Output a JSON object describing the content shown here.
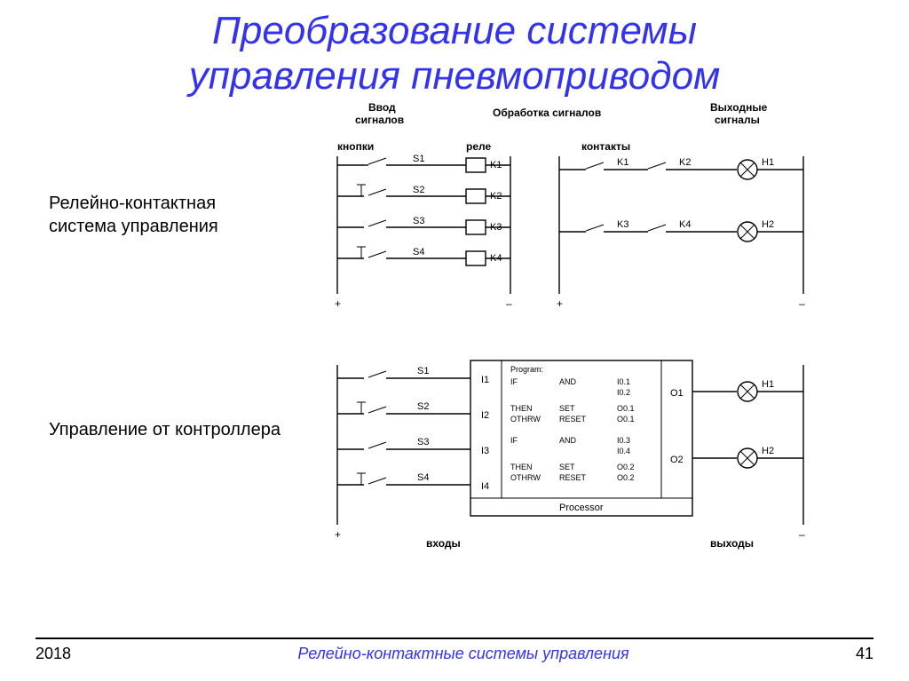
{
  "page": {
    "title_line1": "Преобразование системы",
    "title_line2": "управления пневмоприводом",
    "year": "2018",
    "footer_title": "Релейно-контактные системы управления",
    "page_number": "41"
  },
  "labels": {
    "left_top": "Релейно-контактная\nсистема управления",
    "left_bottom": "Управление от контроллера"
  },
  "diagram_top": {
    "headers": {
      "input": "Ввод\nсигналов",
      "process": "Обработка сигналов",
      "output": "Выходные\nсигналы",
      "buttons": "кнопки",
      "relays": "реле",
      "contacts": "контакты"
    },
    "switches": [
      "S1",
      "S2",
      "S3",
      "S4"
    ],
    "coils": [
      "K1",
      "K2",
      "K3",
      "K4"
    ],
    "contacts_row1": [
      "K1",
      "K2"
    ],
    "contacts_row2": [
      "K3",
      "K4"
    ],
    "lamps": [
      "H1",
      "H2"
    ],
    "polarity": {
      "plus": "+",
      "minus": "–"
    }
  },
  "diagram_bottom": {
    "switches": [
      "S1",
      "S2",
      "S3",
      "S4"
    ],
    "inputs": [
      "I1",
      "I2",
      "I3",
      "I4"
    ],
    "outputs": [
      "O1",
      "O2"
    ],
    "lamps": [
      "H1",
      "H2"
    ],
    "processor_label": "Processor",
    "program_header": "Program:",
    "program_rows": [
      [
        "IF",
        "AND",
        "I0.1"
      ],
      [
        "",
        "",
        "I0.2"
      ],
      [
        "THEN",
        "SET",
        "O0.1"
      ],
      [
        "OTHRW",
        "RESET",
        "O0.1"
      ],
      [
        "IF",
        "AND",
        "I0.3"
      ],
      [
        "",
        "",
        "I0.4"
      ],
      [
        "THEN",
        "SET",
        "O0.2"
      ],
      [
        "OTHRW",
        "RESET",
        "O0.2"
      ]
    ],
    "inputs_label": "входы",
    "outputs_label": "выходы",
    "polarity": {
      "plus": "+",
      "minus": "–"
    }
  },
  "style": {
    "title_color": "#3333ee",
    "stroke": "#000000",
    "bg": "#ffffff"
  }
}
